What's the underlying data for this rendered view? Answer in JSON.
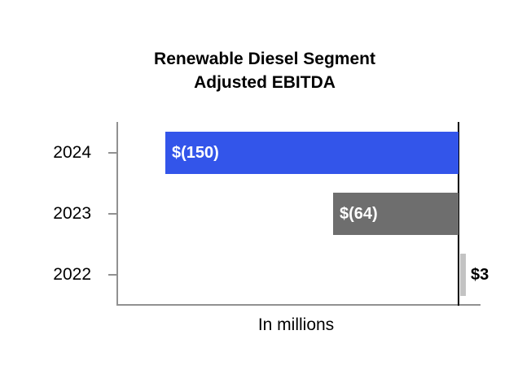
{
  "chart": {
    "title_line1": "Renewable Diesel Segment",
    "title_line2": "Adjusted EBITDA"
  },
  "chart_data": {
    "type": "bar",
    "orientation": "horizontal",
    "title": "Renewable Diesel Segment Adjusted EBITDA",
    "xlabel": "In millions",
    "ylabel": "",
    "categories": [
      "2024",
      "2023",
      "2022"
    ],
    "values": [
      -150,
      -64,
      3
    ],
    "value_labels": [
      "$(150)",
      "$(64)",
      "$3"
    ],
    "bar_colors": [
      "#3355EA",
      "#6E6E6E",
      "#C3C3C3"
    ],
    "value_label_colors": [
      "#FFFFFF",
      "#FFFFFF",
      "#000000"
    ],
    "xlim": [
      -174,
      11
    ],
    "grid": false,
    "legend": false,
    "zero_baseline": true
  },
  "colors": {
    "accent_blue": "#3355EA",
    "bar_gray": "#6E6E6E",
    "bar_light_gray": "#C3C3C3",
    "axis_line": "#919191",
    "zero_line": "#000000",
    "background": "#FFFFFF",
    "text": "#000000"
  }
}
